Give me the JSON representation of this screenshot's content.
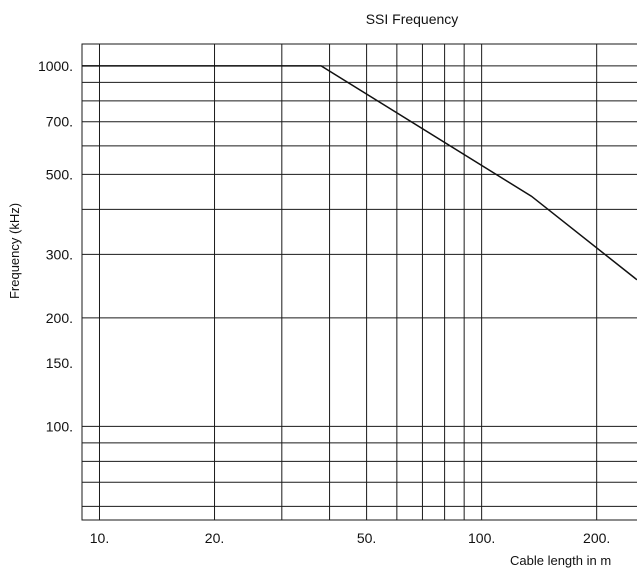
{
  "chart_data": {
    "type": "line",
    "title": "SSI Frequency",
    "xlabel": "Cable length in m",
    "ylabel": "Frequency (kHz)",
    "x_scale": "log",
    "y_scale": "log",
    "xlim": [
      9,
      255
    ],
    "ylim": [
      55,
      1150
    ],
    "grid": true,
    "x_ticks": [
      10,
      20,
      50,
      100,
      200
    ],
    "x_tick_labels": [
      "10.",
      "20.",
      "50.",
      "100.",
      "200."
    ],
    "y_ticks": [
      100,
      150,
      200,
      300,
      500,
      700,
      1000
    ],
    "y_tick_labels": [
      "100.",
      "150.",
      "200.",
      "300.",
      "500.",
      "700.",
      "1000."
    ],
    "series": [
      {
        "x": [
          9,
          38,
          135,
          255
        ],
        "y": [
          1000,
          1000,
          435,
          255
        ]
      }
    ]
  },
  "colors": {
    "line": "#111111",
    "grid": "#1a1a1a",
    "background": "#ffffff"
  }
}
